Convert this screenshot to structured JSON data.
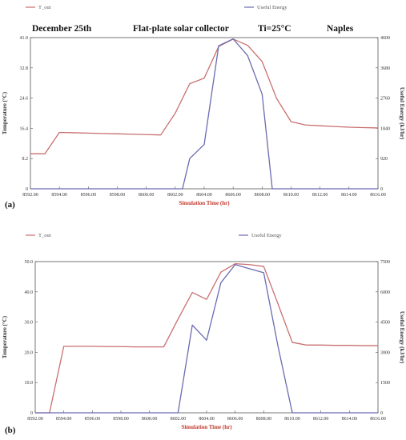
{
  "chart_data": [
    {
      "type": "line",
      "panel_label": "(a)",
      "header": {
        "date": "December 25th",
        "title": "Flat-plate solar collector",
        "ti": "Ti=25°C",
        "location": "Naples"
      },
      "legend": [
        {
          "name": "T_out",
          "color": "#c96f6f"
        },
        {
          "name": "Useful Energy",
          "color": "#6b6bb2"
        }
      ],
      "xlabel": "Simulation Time (hr)",
      "ylabel_left": "Temperature (°C)",
      "ylabel_right": "Useful Energy (kJ/hr)",
      "xlim": [
        8592,
        8616
      ],
      "ylim_left": [
        0,
        41
      ],
      "ylim_right": [
        0,
        4600
      ],
      "x_ticks": [
        "8592.00",
        "8594.00",
        "8596.00",
        "8598.00",
        "8600.00",
        "8602.00",
        "8604.00",
        "8606.00",
        "8608.00",
        "8610.00",
        "8612.00",
        "8614.00",
        "8616.00"
      ],
      "y_ticks_left": [
        "0",
        "8.2",
        "16.4",
        "24.6",
        "32.8",
        "41.0"
      ],
      "y_ticks_right": [
        "0",
        "920",
        "1840",
        "2760",
        "3680",
        "4600"
      ],
      "grid": false,
      "series": [
        {
          "name": "T_out",
          "axis": "left",
          "color": "#c96f6f",
          "x": [
            8592,
            8593,
            8594,
            8595,
            8596,
            8597,
            8598,
            8599,
            8600,
            8601,
            8602,
            8603,
            8604,
            8605,
            8606,
            8607,
            8608,
            8609,
            8610,
            8611,
            8612,
            8613,
            8614,
            8615,
            8616
          ],
          "values": [
            9.5,
            9.5,
            15.3,
            15.2,
            15.1,
            15.0,
            14.9,
            14.8,
            14.7,
            14.6,
            20.5,
            28.5,
            30.0,
            38.6,
            40.6,
            38.9,
            34.5,
            24.5,
            18.2,
            17.3,
            17.1,
            16.9,
            16.7,
            16.6,
            16.5
          ]
        },
        {
          "name": "Useful Energy",
          "axis": "right",
          "color": "#6b6bb2",
          "x": [
            8592,
            8593,
            8594,
            8595,
            8596,
            8597,
            8598,
            8599,
            8600,
            8601,
            8602,
            8602.5,
            8603,
            8604,
            8605,
            8606,
            8607,
            8608,
            8608.7,
            8609,
            8610,
            8611,
            8612,
            8613,
            8614,
            8615,
            8616
          ],
          "values": [
            0,
            0,
            0,
            0,
            0,
            0,
            0,
            0,
            0,
            0,
            0,
            0,
            920,
            1350,
            4350,
            4560,
            4050,
            2880,
            0,
            0,
            0,
            0,
            0,
            0,
            0,
            0,
            0
          ]
        }
      ]
    },
    {
      "type": "line",
      "panel_label": "(b)",
      "legend": [
        {
          "name": "T_out",
          "color": "#c96f6f"
        },
        {
          "name": "Useful Energy",
          "color": "#6b6bb2"
        }
      ],
      "xlabel": "Simulation Time (hr)",
      "ylabel_left": "Temperature (°C)",
      "ylabel_right": "Useful Energy (kJ/hr)",
      "xlim": [
        8592,
        8616
      ],
      "ylim_left": [
        0,
        50
      ],
      "ylim_right": [
        0,
        7500
      ],
      "x_ticks": [
        "8592.00",
        "8594.00",
        "8596.00",
        "8598.00",
        "8600.00",
        "8602.00",
        "8604.00",
        "8606.00",
        "8608.00",
        "8610.00",
        "8612.00",
        "8614.00",
        "8616.00"
      ],
      "y_ticks_left": [
        "0",
        "10.0",
        "20.0",
        "30.0",
        "40.0",
        "50.0"
      ],
      "y_ticks_right": [
        "0",
        "1500",
        "3000",
        "4500",
        "6000",
        "7500"
      ],
      "grid": false,
      "series": [
        {
          "name": "T_out",
          "axis": "left",
          "color": "#c96f6f",
          "x": [
            8592,
            8593,
            8594,
            8595,
            8596,
            8597,
            8598,
            8599,
            8600,
            8601,
            8602,
            8603,
            8604,
            8605,
            8606,
            8607,
            8608,
            8609,
            8610,
            8611,
            8612,
            8613,
            8614,
            8615,
            8616
          ],
          "values": [
            0,
            0,
            22.0,
            22.0,
            22.0,
            21.9,
            21.9,
            21.8,
            21.8,
            21.8,
            31.0,
            39.8,
            37.5,
            46.5,
            49.3,
            49.0,
            48.4,
            36.0,
            23.3,
            22.4,
            22.4,
            22.3,
            22.3,
            22.2,
            22.2
          ]
        },
        {
          "name": "Useful Energy",
          "axis": "right",
          "color": "#6b6bb2",
          "x": [
            8592,
            8593,
            8594,
            8595,
            8596,
            8597,
            8598,
            8599,
            8600,
            8601,
            8602,
            8603,
            8604,
            8605,
            8606,
            8607,
            8608,
            8609,
            8610,
            8611,
            8612,
            8613,
            8614,
            8615,
            8616
          ],
          "values": [
            0,
            0,
            0,
            0,
            0,
            0,
            0,
            0,
            0,
            0,
            0,
            4350,
            3600,
            6450,
            7350,
            7150,
            6950,
            3300,
            0,
            0,
            0,
            0,
            0,
            0,
            0
          ]
        }
      ]
    }
  ]
}
